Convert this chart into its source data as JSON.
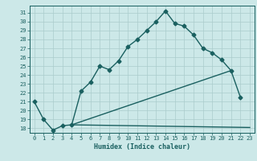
{
  "title": "",
  "xlabel": "Humidex (Indice chaleur)",
  "ylabel": "",
  "bg_color": "#cce8e8",
  "grid_color": "#aacccc",
  "line_color": "#1a6060",
  "xlim": [
    -0.5,
    23.5
  ],
  "ylim": [
    17.5,
    31.8
  ],
  "xticks": [
    0,
    1,
    2,
    3,
    4,
    5,
    6,
    7,
    8,
    9,
    10,
    11,
    12,
    13,
    14,
    15,
    16,
    17,
    18,
    19,
    20,
    21,
    22,
    23
  ],
  "yticks": [
    18,
    19,
    20,
    21,
    22,
    23,
    24,
    25,
    26,
    27,
    28,
    29,
    30,
    31
  ],
  "curve1_x": [
    0,
    1,
    2,
    3,
    4,
    5,
    6,
    7,
    8,
    9,
    10,
    11,
    12,
    13,
    14,
    15,
    16,
    17,
    18,
    19,
    20,
    21,
    22
  ],
  "curve1_y": [
    21,
    19,
    17.8,
    18.3,
    18.4,
    22.2,
    23.2,
    25.0,
    24.6,
    25.6,
    27.2,
    28.0,
    29.0,
    30.0,
    31.2,
    29.8,
    29.5,
    28.5,
    27.0,
    26.5,
    25.7,
    24.5,
    21.5
  ],
  "curve2_x": [
    4,
    23
  ],
  "curve2_y": [
    18.4,
    18.1
  ],
  "curve3_x": [
    4,
    21
  ],
  "curve3_y": [
    18.4,
    24.5
  ],
  "marker_size": 2.5,
  "line_width": 1.0
}
